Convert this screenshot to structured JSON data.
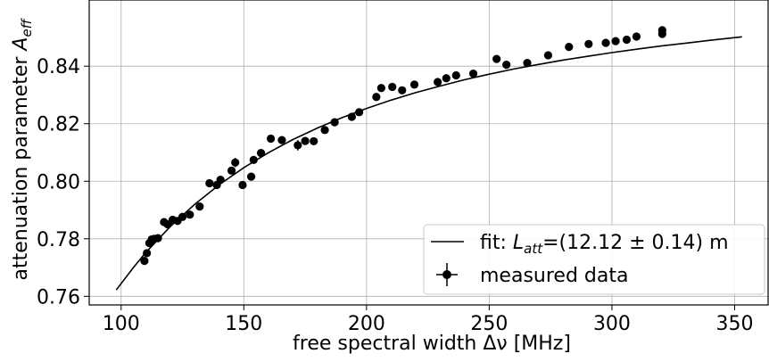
{
  "chart_data": {
    "type": "scatter",
    "xlabel": "free spectral width Δν [MHz]",
    "ylabel_main": "attenuation parameter ",
    "ylabel_symbol": "A",
    "ylabel_sub": "eff",
    "xlim": [
      87,
      364
    ],
    "ylim": [
      0.757,
      0.863
    ],
    "xticks": [
      100,
      150,
      200,
      250,
      300,
      350
    ],
    "yticks": [
      0.76,
      0.78,
      0.8,
      0.82,
      0.84
    ],
    "ytick_labels": [
      "0.76",
      "0.78",
      "0.80",
      "0.82",
      "0.84"
    ],
    "grid": true,
    "legend_position": "lower-right",
    "series": [
      {
        "name": "measured data",
        "kind": "points-with-errorbars",
        "color": "#000000",
        "points": [
          [
            109.5,
            0.7723
          ],
          [
            110.5,
            0.775
          ],
          [
            111.5,
            0.7785
          ],
          [
            112.5,
            0.7798
          ],
          [
            113.5,
            0.78
          ],
          [
            115.0,
            0.7802
          ],
          [
            117.5,
            0.7858
          ],
          [
            119.0,
            0.785
          ],
          [
            121.0,
            0.7866
          ],
          [
            123.0,
            0.7862
          ],
          [
            125.0,
            0.7876
          ],
          [
            128.0,
            0.7884
          ],
          [
            132.0,
            0.7912
          ],
          [
            136.0,
            0.7993
          ],
          [
            139.0,
            0.7987
          ],
          [
            140.5,
            0.8005
          ],
          [
            145.0,
            0.8037
          ],
          [
            146.5,
            0.8065
          ],
          [
            149.5,
            0.7987
          ],
          [
            153.0,
            0.8016
          ],
          [
            154.0,
            0.8074
          ],
          [
            157.0,
            0.8098
          ],
          [
            161.0,
            0.8148
          ],
          [
            165.5,
            0.8143
          ],
          [
            172.0,
            0.8125
          ],
          [
            175.0,
            0.814
          ],
          [
            178.5,
            0.8139
          ],
          [
            183.0,
            0.8178
          ],
          [
            187.0,
            0.8205
          ],
          [
            194.0,
            0.8224
          ],
          [
            197.0,
            0.824
          ],
          [
            204.0,
            0.8293
          ],
          [
            206.0,
            0.8324
          ],
          [
            210.5,
            0.8328
          ],
          [
            214.5,
            0.8316
          ],
          [
            219.5,
            0.8336
          ],
          [
            229.0,
            0.8345
          ],
          [
            232.5,
            0.8358
          ],
          [
            236.5,
            0.8368
          ],
          [
            243.5,
            0.8374
          ],
          [
            253.0,
            0.8425
          ],
          [
            257.0,
            0.8405
          ],
          [
            265.5,
            0.8411
          ],
          [
            274.0,
            0.8438
          ],
          [
            282.5,
            0.8467
          ],
          [
            290.5,
            0.8477
          ],
          [
            297.5,
            0.8481
          ],
          [
            301.5,
            0.8487
          ],
          [
            306.0,
            0.8492
          ],
          [
            310.0,
            0.8503
          ],
          [
            320.5,
            0.8525
          ],
          [
            320.5,
            0.8512
          ]
        ],
        "errors": [
          0.0008,
          0.0008,
          0.0008,
          0.0008,
          0.0008,
          0.0008,
          0.0008,
          0.0008,
          0.0008,
          0.0008,
          0.0008,
          0.0008,
          0.0008,
          0.0008,
          0.0008,
          0.0008,
          0.0008,
          0.0016,
          0.0008,
          0.0008,
          0.0008,
          0.0008,
          0.0008,
          0.0008,
          0.0018,
          0.0008,
          0.0008,
          0.0008,
          0.0008,
          0.0008,
          0.0008,
          0.0008,
          0.0008,
          0.0008,
          0.0008,
          0.0008,
          0.0008,
          0.0008,
          0.0008,
          0.0008,
          0.0008,
          0.0008,
          0.0008,
          0.0008,
          0.0008,
          0.0008,
          0.0014,
          0.0008,
          0.0012,
          0.0008,
          0.0008,
          0.0008
        ]
      },
      {
        "name": "fit: L_att=(12.12 ± 0.14) m",
        "kind": "line",
        "color": "#000000",
        "x": [
          98,
          105,
          110,
          120,
          130,
          140,
          150,
          160,
          170,
          180,
          190,
          200,
          210,
          220,
          230,
          240,
          250,
          260,
          270,
          280,
          290,
          300,
          310,
          320,
          330,
          340,
          353
        ],
        "y": [
          0.7622,
          0.77,
          0.7752,
          0.7842,
          0.792,
          0.7988,
          0.8047,
          0.8099,
          0.8145,
          0.8185,
          0.8221,
          0.8253,
          0.8282,
          0.8308,
          0.8331,
          0.8353,
          0.8372,
          0.839,
          0.8406,
          0.8421,
          0.8434,
          0.8447,
          0.8459,
          0.847,
          0.848,
          0.849,
          0.8502
        ]
      }
    ],
    "legend": {
      "fit_prefix": "fit: ",
      "fit_symbol": "L",
      "fit_sub": "att",
      "fit_suffix": "=(12.12 ± 0.14) m",
      "data_label": "measured data"
    }
  }
}
